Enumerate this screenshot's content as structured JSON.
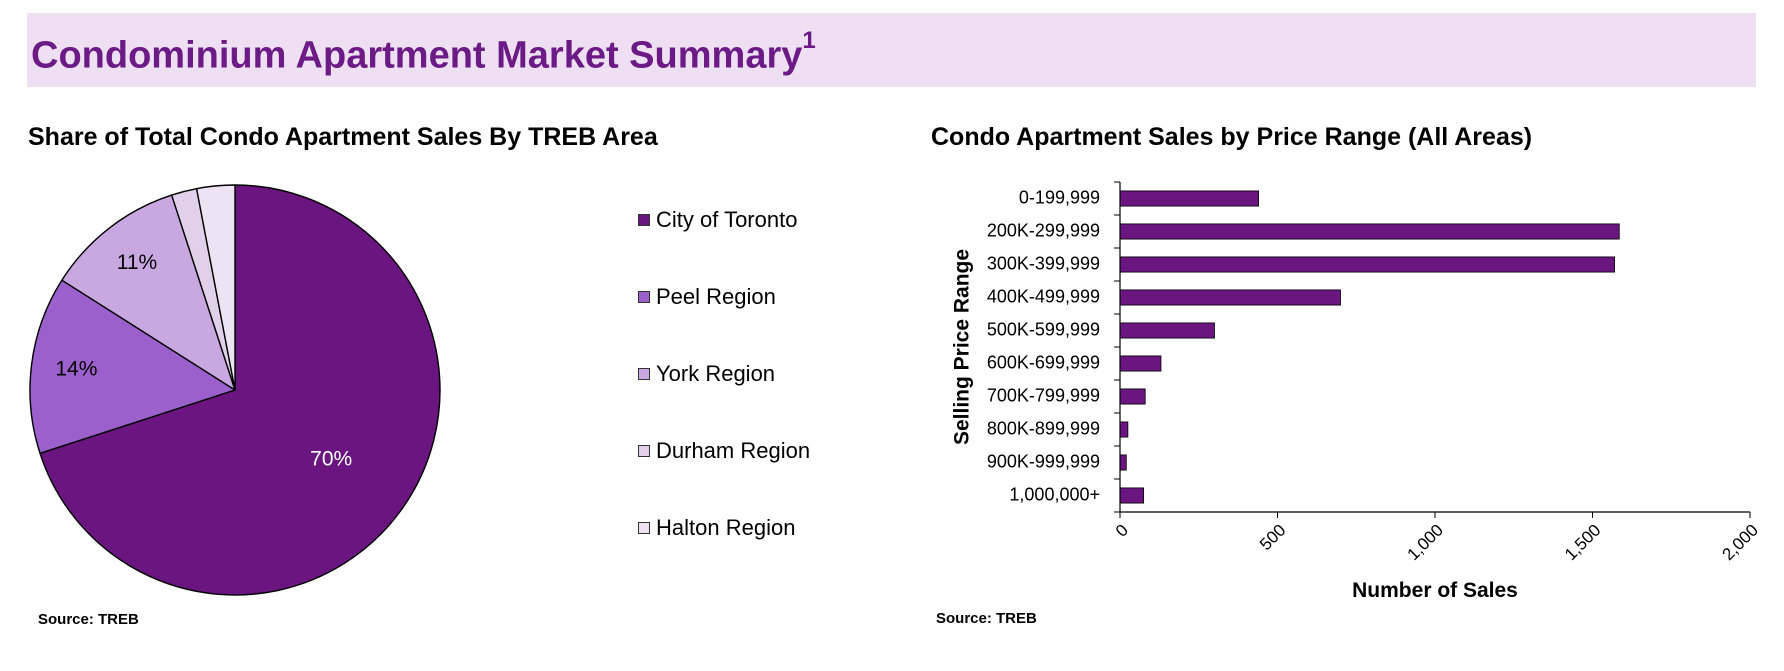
{
  "header": {
    "title": "Condominium Apartment Market Summary",
    "title_sup": "1",
    "banner_color": "#eee0f2",
    "title_color": "#6b1a86"
  },
  "left": {
    "title": "Share of Total Condo Apartment Sales By TREB Area",
    "source": "Source: TREB"
  },
  "right": {
    "title": "Condo Apartment Sales by Price Range (All Areas)",
    "source": "Source: TREB"
  },
  "chart_data": [
    {
      "type": "pie",
      "title": "Share of Total Condo Apartment Sales By TREB Area",
      "slices": [
        {
          "label": "City of Toronto",
          "value": 70,
          "data_label": "70%",
          "color": "#6a1580"
        },
        {
          "label": "Peel Region",
          "value": 14,
          "data_label": "14%",
          "color": "#9b60cc"
        },
        {
          "label": "York Region",
          "value": 11,
          "data_label": "11%",
          "color": "#c9a8e2"
        },
        {
          "label": "Durham Region",
          "value": 2,
          "data_label": "",
          "color": "#e0d0ea"
        },
        {
          "label": "Halton Region",
          "value": 3,
          "data_label": "",
          "color": "#eee3f3"
        }
      ],
      "legend_position": "right",
      "start_angle_deg": 0,
      "direction": "clockwise"
    },
    {
      "type": "bar",
      "orientation": "horizontal",
      "title": "Condo Apartment Sales by Price Range (All Areas)",
      "categories": [
        "0-199,999",
        "200K-299,999",
        "300K-399,999",
        "400K-499,999",
        "500K-599,999",
        "600K-699,999",
        "700K-799,999",
        "800K-899,999",
        "900K-999,999",
        "1,000,000+"
      ],
      "values": [
        440,
        1585,
        1570,
        700,
        300,
        130,
        80,
        25,
        20,
        75
      ],
      "bar_color": "#6a1580",
      "xlabel": "Number of Sales",
      "ylabel": "Selling Price Range",
      "xlim": [
        0,
        2000
      ],
      "xticks": [
        0,
        500,
        1000,
        1500,
        2000
      ],
      "xtick_labels": [
        "0",
        "500",
        "1,000",
        "1,500",
        "2,000"
      ],
      "grid": false
    }
  ]
}
